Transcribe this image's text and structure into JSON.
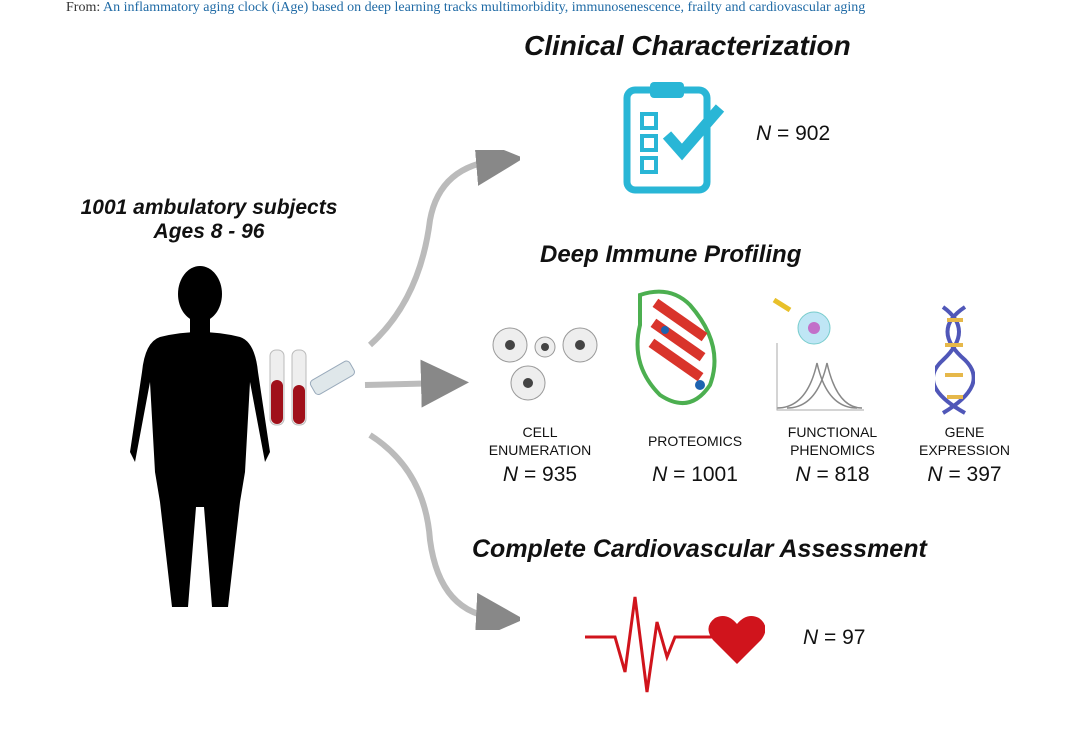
{
  "caption": {
    "prefix": "From: ",
    "link": "An inflammatory aging clock (iAge) based on deep learning tracks multimorbidity, immunosenescence, frailty and cardiovascular aging"
  },
  "subjects": {
    "line1": "1001 ambulatory subjects",
    "line2": "Ages 8 - 96"
  },
  "clinical": {
    "title": "Clinical Characterization",
    "n_label": "N",
    "n_value": "= 902"
  },
  "immune": {
    "title": "Deep Immune Profiling",
    "items": [
      {
        "l1": "CELL",
        "l2": "ENUMERATION",
        "n": "= 935"
      },
      {
        "l1": "PROTEOMICS",
        "l2": "",
        "n": "= 1001"
      },
      {
        "l1": "FUNCTIONAL",
        "l2": "PHENOMICS",
        "n": "= 818"
      },
      {
        "l1": "GENE",
        "l2": "EXPRESSION",
        "n": "= 397"
      }
    ]
  },
  "cardio": {
    "title": "Complete Cardiovascular Assessment",
    "n_value": "= 97"
  },
  "n_symbol": "N",
  "colors": {
    "clipboard": "#29b6d6",
    "heart": "#d0141c",
    "link": "#1f6aa5"
  }
}
